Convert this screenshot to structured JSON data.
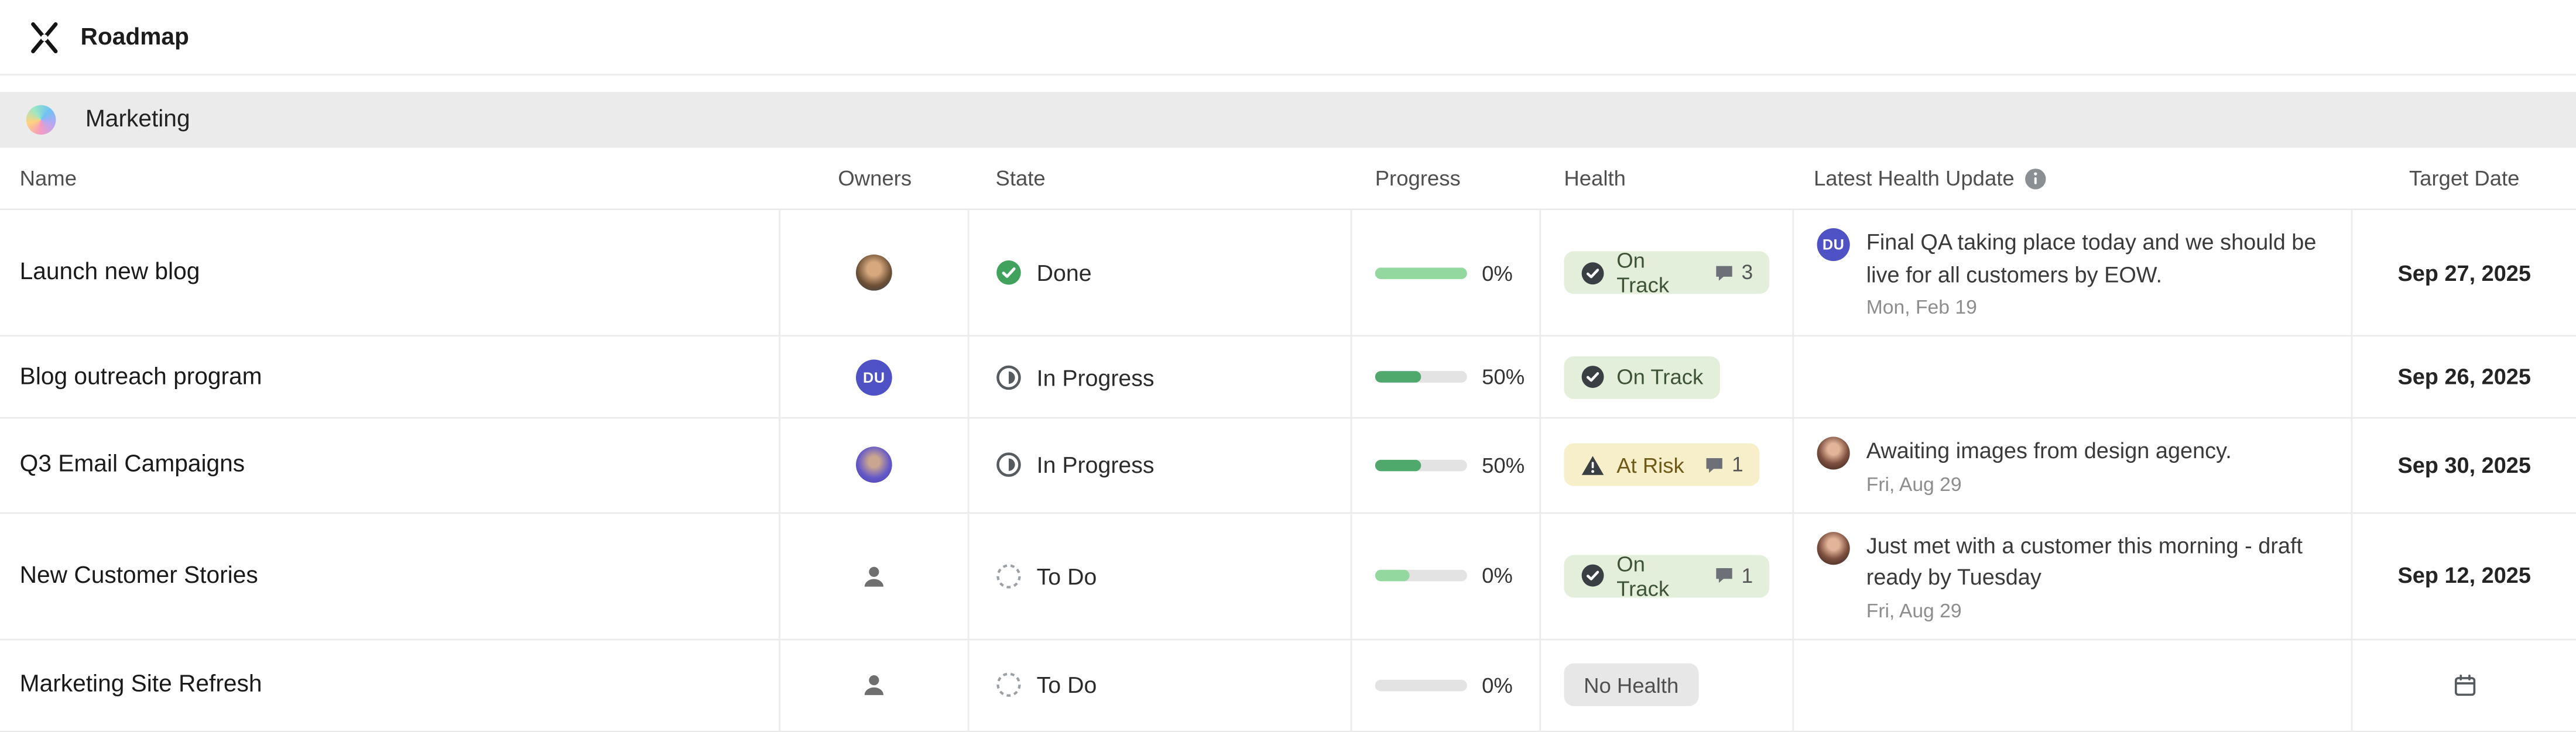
{
  "colors": {
    "group_bar_bg": "#ebebeb",
    "progress_fill": "#4fa96d",
    "progress_fill_light": "#93d89e",
    "on_track_bg": "#e3efdb",
    "on_track_text": "#3c5335",
    "at_risk_bg": "#f6efc9",
    "at_risk_text": "#6e5a17",
    "no_health_bg": "#e7e7e7"
  },
  "topbar": {
    "title": "Roadmap"
  },
  "group": {
    "name": "Marketing"
  },
  "columns": {
    "name": "Name",
    "owners": "Owners",
    "state": "State",
    "progress": "Progress",
    "health": "Health",
    "update": "Latest Health Update",
    "target": "Target Date"
  },
  "rows": [
    {
      "name": "Launch new blog",
      "state_label": "Done",
      "progress_label": "0%",
      "progress_width": "100%",
      "health_label": "On Track",
      "comment_count": "3",
      "update_avatar_initials": "DU",
      "update_text": "Final QA taking place today and we should be live for all customers by EOW.",
      "update_date": "Mon, Feb 19",
      "target_date": "Sep 27, 2025"
    },
    {
      "name": "Blog outreach program",
      "owner_initials": "DU",
      "state_label": "In Progress",
      "progress_label": "50%",
      "progress_width": "50%",
      "health_label": "On Track",
      "target_date": "Sep 26, 2025"
    },
    {
      "name": "Q3 Email Campaigns",
      "state_label": "In Progress",
      "progress_label": "50%",
      "progress_width": "50%",
      "health_label": "At Risk",
      "comment_count": "1",
      "update_text": "Awaiting images from design agency.",
      "update_date": "Fri, Aug 29",
      "target_date": "Sep 30, 2025"
    },
    {
      "name": "New Customer Stories",
      "state_label": "To Do",
      "progress_label": "0%",
      "progress_width": "38%",
      "health_label": "On Track",
      "comment_count": "1",
      "update_text": "Just met with a customer this morning - draft ready by Tuesday",
      "update_date": "Fri, Aug 29",
      "target_date": "Sep 12, 2025"
    },
    {
      "name": "Marketing Site Refresh",
      "state_label": "To Do",
      "progress_label": "0%",
      "progress_width": "0%",
      "health_label": "No Health"
    }
  ]
}
